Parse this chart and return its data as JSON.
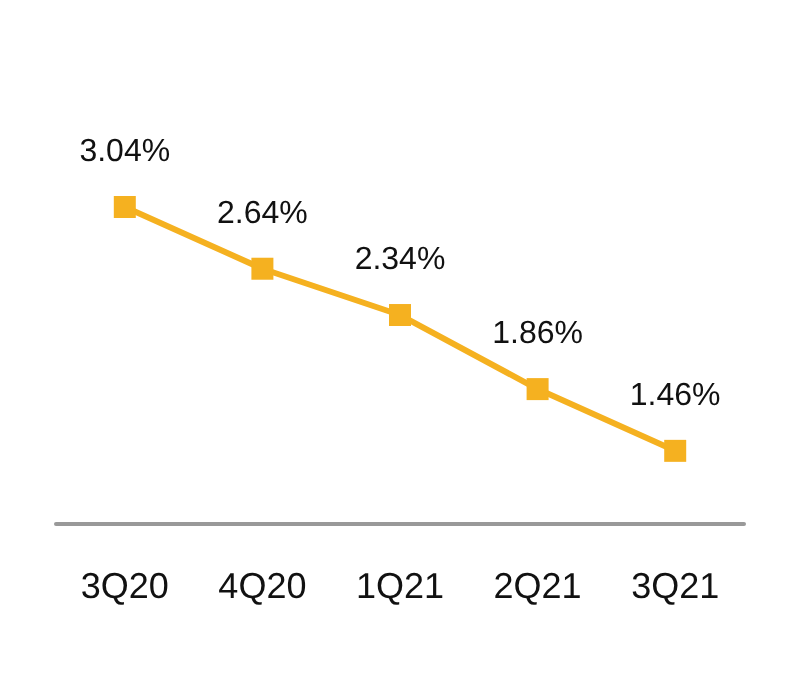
{
  "chart_data": {
    "type": "line",
    "categories": [
      "3Q20",
      "4Q20",
      "1Q21",
      "2Q21",
      "3Q21"
    ],
    "series": [
      {
        "color": "#f5b120",
        "values": [
          3.04,
          2.64,
          2.34,
          1.86,
          1.46
        ],
        "value_labels": [
          "3.04%",
          "2.64%",
          "2.34%",
          "1.86%",
          "1.46%"
        ]
      }
    ],
    "marker": "square",
    "line_style": "solid"
  }
}
